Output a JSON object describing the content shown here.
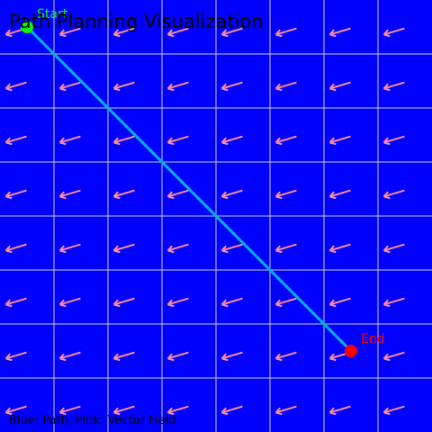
{
  "title": "Path Planning Visualization",
  "start_label": "Start",
  "end_label": "End",
  "legend": "Blue: Path, Pink: Vector Field",
  "colors": {
    "background": "#0000ff",
    "grid": "#c8c8dc",
    "path": "#00b4e6",
    "arrow": "#ff8c96",
    "start": "#00ff00",
    "end": "#ff0000",
    "start_label": "#00ff00",
    "end_label": "#ff0000"
  },
  "grid": {
    "columns": 8,
    "rows": 8
  },
  "vector_field": {
    "direction_dx": -1,
    "direction_dy": 0.3
  },
  "path": {
    "start_cell": [
      0.5,
      0.5
    ],
    "end_cell": [
      6.5,
      6.5
    ]
  }
}
